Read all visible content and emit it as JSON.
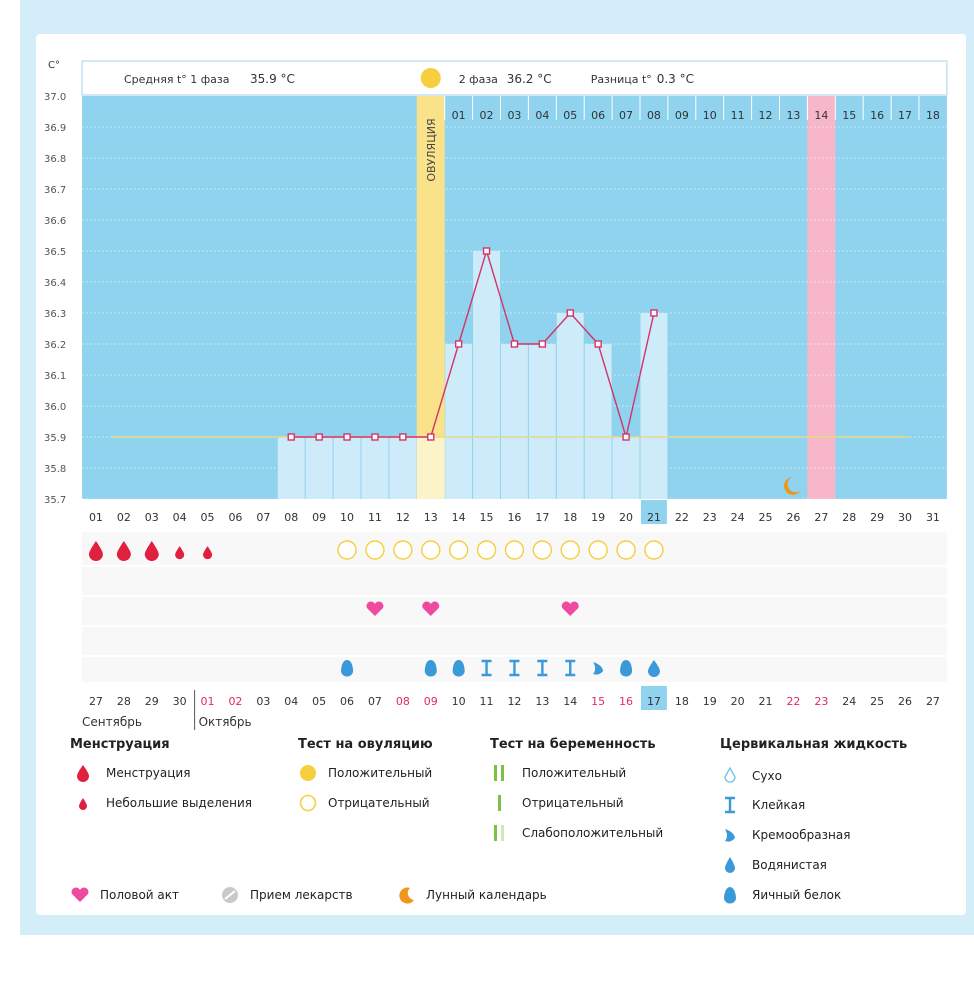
{
  "header": {
    "unit_label": "С°",
    "phase1_text": "Средняя t° 1 фаза",
    "phase1_value": "35.9 °С",
    "phase2_text": "2 фаза",
    "phase2_value": "36.2 °С",
    "diff_text": "Разница t°",
    "diff_value": "0.3 °С",
    "ovulation_label": "ОВУЛЯЦИЯ"
  },
  "colors": {
    "chart_bg": "#8fd3ef",
    "bar_fill": "#cdebf8",
    "line": "#d4336a",
    "coverline": "#e6d98c",
    "ovulation": "#f9e28a",
    "highlight_day": "#f7b7c8",
    "marker_fill": "#ffffff",
    "red_day": "#e32b5a",
    "menstruation": "#e0203f",
    "pregnancy_test": "#7bc142",
    "moon": "#f0961c"
  },
  "chart_data": {
    "type": "line",
    "ylabel": "С°",
    "ylim": [
      35.7,
      37.0
    ],
    "y_ticks": [
      "37.0",
      "36.9",
      "36.8",
      "36.7",
      "36.6",
      "36.5",
      "36.4",
      "36.3",
      "36.2",
      "36.1",
      "36.0",
      "35.9",
      "35.8",
      "35.7"
    ],
    "cycle_days": [
      "01",
      "02",
      "03",
      "04",
      "05",
      "06",
      "07",
      "08",
      "09",
      "10",
      "11",
      "12",
      "13",
      "14",
      "15",
      "16",
      "17",
      "18",
      "19",
      "20",
      "21",
      "22",
      "23",
      "24",
      "25",
      "26",
      "27",
      "28",
      "29",
      "30",
      "31"
    ],
    "phase2_days": [
      "01",
      "02",
      "03",
      "04",
      "05",
      "06",
      "07",
      "08",
      "09",
      "10",
      "11",
      "12",
      "13",
      "14",
      "15",
      "16",
      "17",
      "18"
    ],
    "temperature": [
      null,
      null,
      null,
      null,
      null,
      null,
      null,
      35.9,
      35.9,
      35.9,
      35.9,
      35.9,
      35.9,
      36.2,
      36.5,
      36.2,
      36.2,
      36.3,
      36.2,
      35.9,
      36.3,
      null,
      null,
      null,
      null,
      null,
      null,
      null,
      null,
      null,
      null
    ],
    "coverline": 35.9,
    "ovulation_day": 13,
    "current_day": 21,
    "highlight_day": 27,
    "dates": [
      "27",
      "28",
      "29",
      "30",
      "01",
      "02",
      "03",
      "04",
      "05",
      "06",
      "07",
      "08",
      "09",
      "10",
      "11",
      "12",
      "13",
      "14",
      "15",
      "16",
      "17",
      "18",
      "19",
      "20",
      "21",
      "22",
      "23",
      "24",
      "25",
      "26",
      "27"
    ],
    "red_dates": [
      5,
      6,
      12,
      13,
      19,
      20,
      26,
      27
    ],
    "months": [
      "Сентябрь",
      "Октябрь"
    ],
    "menstruation": {
      "days": [
        1,
        2,
        3,
        4,
        5
      ],
      "types": [
        "full",
        "full",
        "full",
        "light",
        "light"
      ]
    },
    "ovulation_test_negative_days": [
      10,
      11,
      12,
      13,
      14,
      15,
      16,
      17,
      18,
      19,
      20,
      21
    ],
    "intercourse_days": [
      11,
      13,
      18
    ],
    "cervical_fluid": [
      {
        "day": 10,
        "type": "egg_white"
      },
      {
        "day": 13,
        "type": "egg_white"
      },
      {
        "day": 14,
        "type": "egg_white"
      },
      {
        "day": 15,
        "type": "sticky"
      },
      {
        "day": 16,
        "type": "sticky"
      },
      {
        "day": 17,
        "type": "sticky"
      },
      {
        "day": 18,
        "type": "sticky"
      },
      {
        "day": 19,
        "type": "creamy"
      },
      {
        "day": 20,
        "type": "egg_white"
      },
      {
        "day": 21,
        "type": "watery"
      }
    ],
    "moon_day": 26
  },
  "legend": {
    "menstruation": {
      "title": "Менструация",
      "items": [
        "Менструация",
        "Небольшие выделения"
      ]
    },
    "ovulation_test": {
      "title": "Тест на овуляцию",
      "items": [
        "Положительный",
        "Отрицательный"
      ]
    },
    "pregnancy_test": {
      "title": "Тест на беременность",
      "items": [
        "Положительный",
        "Отрицательный",
        "Слабоположительный"
      ]
    },
    "cervical": {
      "title": "Цервикальная жидкость",
      "items": [
        "Сухо",
        "Клейкая",
        "Кремообразная",
        "Водянистая",
        "Яичный белок"
      ]
    },
    "other": [
      "Половой акт",
      "Прием лекарств",
      "Лунный календарь"
    ]
  }
}
